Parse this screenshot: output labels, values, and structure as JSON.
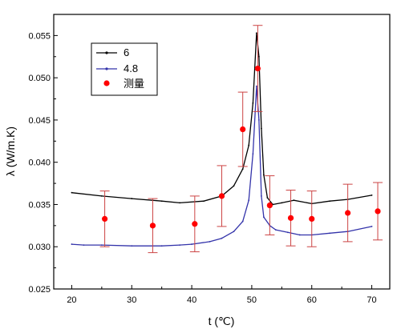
{
  "chart_data": {
    "type": "line",
    "xlabel": "t (℃)",
    "ylabel": "λ (W/m.K)",
    "xlim": [
      17,
      73
    ],
    "ylim": [
      0.025,
      0.0575
    ],
    "x_ticks": [
      20,
      30,
      40,
      50,
      60,
      70
    ],
    "x_tick_labels": [
      "20",
      "30",
      "40",
      "50",
      "60",
      "70"
    ],
    "y_ticks": [
      0.025,
      0.03,
      0.035,
      0.04,
      0.045,
      0.05,
      0.055
    ],
    "y_tick_labels": [
      "0.025",
      "0.030",
      "0.035",
      "0.040",
      "0.045",
      "0.050",
      "0.055"
    ],
    "grid": false,
    "legend_position": "top-left",
    "series": [
      {
        "name": "6",
        "type": "line",
        "color": "#000000",
        "x": [
          20,
          25,
          30,
          35,
          38,
          42,
          45,
          47,
          48.5,
          49.5,
          50.2,
          50.8,
          51.2,
          51.6,
          52,
          52.6,
          53.5,
          55,
          57,
          60,
          63,
          66,
          70
        ],
        "y": [
          0.0364,
          0.036,
          0.0357,
          0.0354,
          0.0352,
          0.0354,
          0.036,
          0.0372,
          0.0392,
          0.042,
          0.047,
          0.0553,
          0.0525,
          0.044,
          0.0385,
          0.0358,
          0.035,
          0.0352,
          0.0355,
          0.0351,
          0.0354,
          0.0356,
          0.0361
        ]
      },
      {
        "name": "4.8",
        "type": "line",
        "color": "#3333aa",
        "x": [
          20,
          22,
          25,
          30,
          35,
          38,
          40,
          43,
          45,
          47,
          48.5,
          49.5,
          50.2,
          50.8,
          51.2,
          51.6,
          52,
          53,
          54,
          56,
          58,
          60,
          63,
          66,
          70
        ],
        "y": [
          0.0303,
          0.0302,
          0.0302,
          0.0301,
          0.0301,
          0.0302,
          0.0303,
          0.0306,
          0.031,
          0.0318,
          0.033,
          0.0355,
          0.041,
          0.049,
          0.045,
          0.036,
          0.0335,
          0.0325,
          0.032,
          0.0317,
          0.0314,
          0.0314,
          0.0316,
          0.0318,
          0.0324
        ]
      },
      {
        "name": "测量",
        "type": "scatter",
        "color": "#ff0000",
        "errorbar_color": "#cc4444",
        "x": [
          25.5,
          33.5,
          40.5,
          45,
          48.5,
          51,
          53,
          56.5,
          60,
          66,
          71
        ],
        "y": [
          0.0333,
          0.0325,
          0.0327,
          0.036,
          0.0439,
          0.0511,
          0.0349,
          0.0334,
          0.0333,
          0.034,
          0.0342
        ],
        "err": [
          0.0033,
          0.0032,
          0.0033,
          0.0036,
          0.0044,
          0.0051,
          0.0035,
          0.0033,
          0.0033,
          0.0034,
          0.0034
        ]
      }
    ]
  }
}
